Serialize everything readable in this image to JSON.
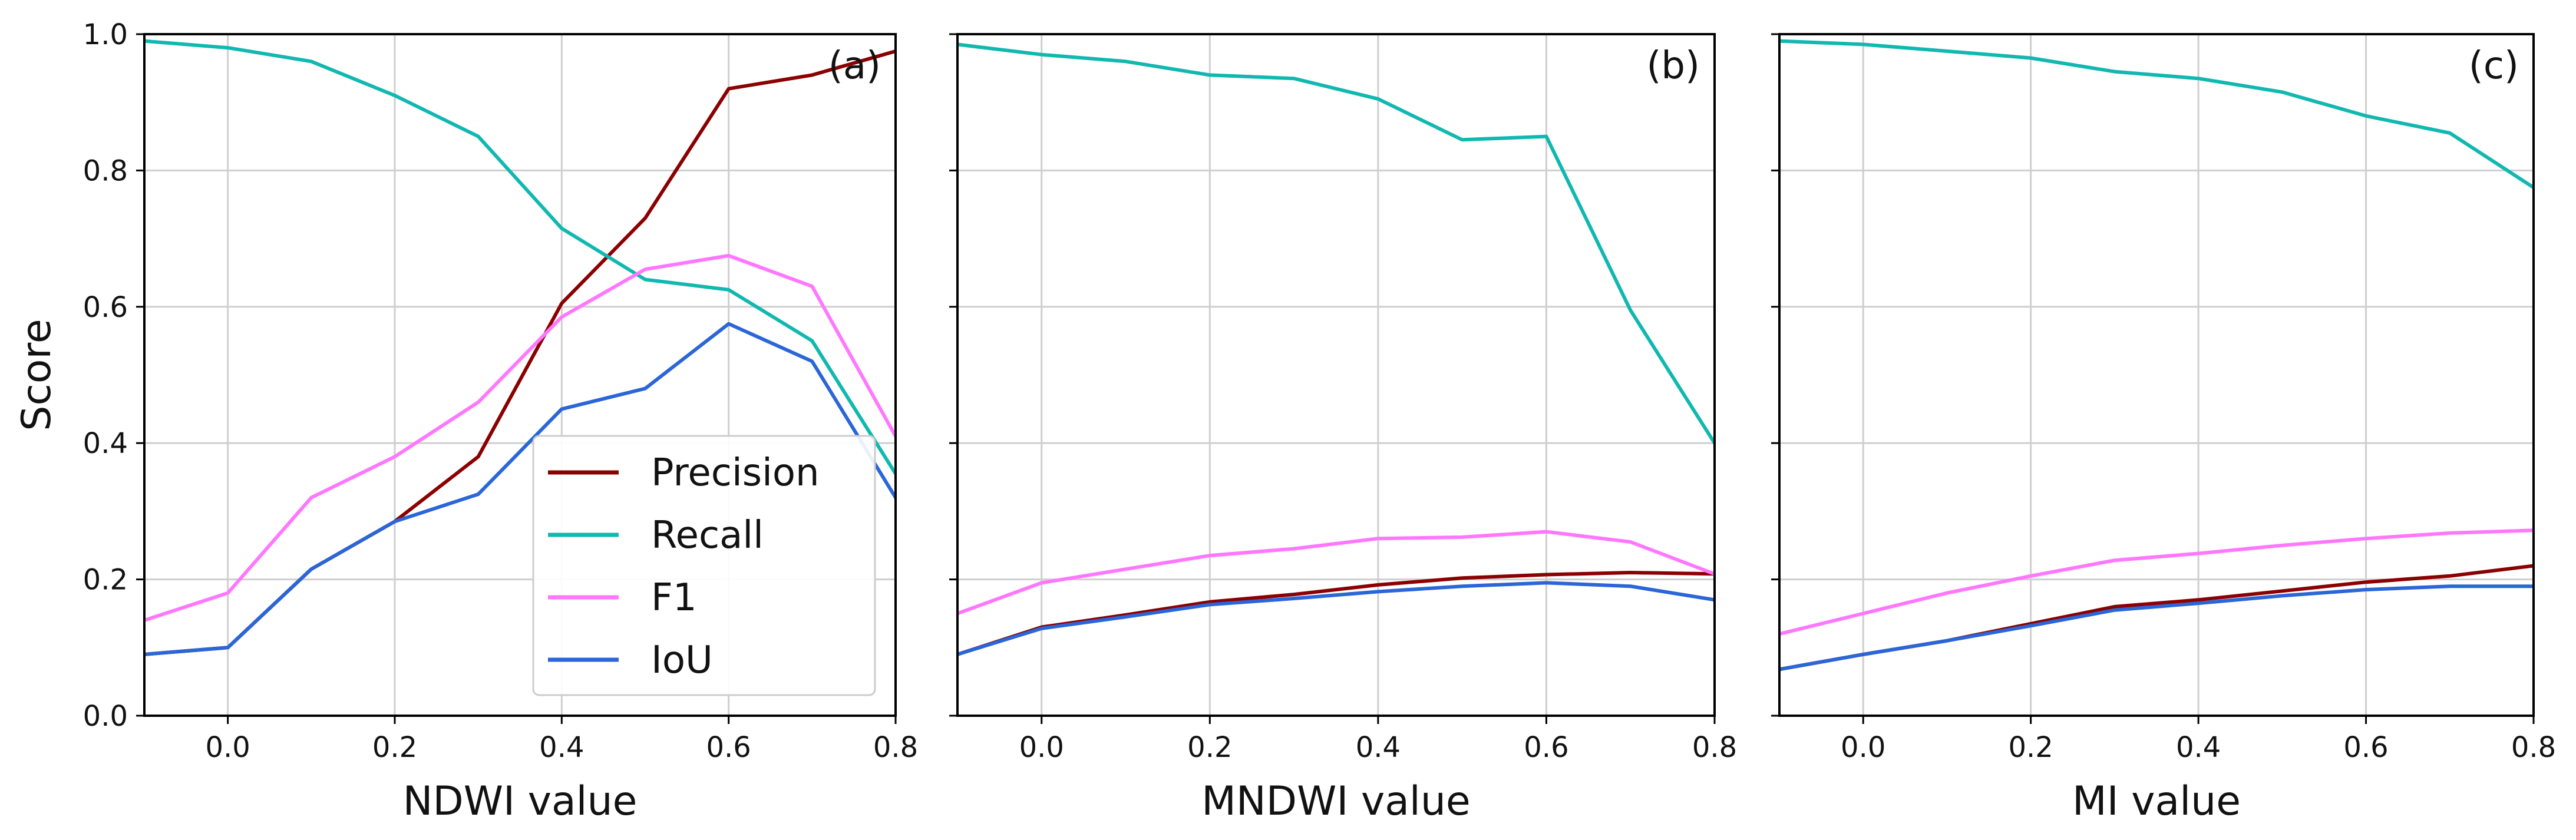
{
  "chart_data": [
    {
      "type": "line",
      "panel_label": "(a)",
      "xlabel": "NDWI value",
      "ylabel": "Score",
      "xlim": [
        -0.1,
        0.8
      ],
      "ylim": [
        0.0,
        1.0
      ],
      "xticks": [
        "0.0",
        "0.2",
        "0.4",
        "0.6",
        "0.8"
      ],
      "yticks": [
        "0.0",
        "0.2",
        "0.4",
        "0.6",
        "0.8",
        "1.0"
      ],
      "grid": true,
      "x": [
        -0.1,
        0.0,
        0.1,
        0.2,
        0.3,
        0.4,
        0.5,
        0.6,
        0.7,
        0.8
      ],
      "series": [
        {
          "name": "Precision",
          "color": "#8b0000",
          "values": [
            0.09,
            0.1,
            0.215,
            0.285,
            0.38,
            0.605,
            0.73,
            0.92,
            0.94,
            0.975
          ]
        },
        {
          "name": "Recall",
          "color": "#10b8b0",
          "values": [
            0.99,
            0.98,
            0.96,
            0.91,
            0.85,
            0.715,
            0.64,
            0.625,
            0.55,
            0.355
          ]
        },
        {
          "name": "F1",
          "color": "#ff77ff",
          "values": [
            0.14,
            0.18,
            0.32,
            0.38,
            0.46,
            0.585,
            0.655,
            0.675,
            0.63,
            0.41
          ]
        },
        {
          "name": "IoU",
          "color": "#2a66d8",
          "values": [
            0.09,
            0.1,
            0.215,
            0.285,
            0.325,
            0.45,
            0.48,
            0.575,
            0.52,
            0.32
          ]
        }
      ],
      "legend": {
        "position": "lower-right",
        "entries": [
          "Precision",
          "Recall",
          "F1",
          "IoU"
        ]
      }
    },
    {
      "type": "line",
      "panel_label": "(b)",
      "xlabel": "MNDWI value",
      "xlim": [
        -0.1,
        0.8
      ],
      "ylim": [
        0.0,
        1.0
      ],
      "xticks": [
        "0.0",
        "0.2",
        "0.4",
        "0.6",
        "0.8"
      ],
      "grid": true,
      "x": [
        -0.1,
        0.0,
        0.1,
        0.2,
        0.3,
        0.4,
        0.5,
        0.6,
        0.7,
        0.8
      ],
      "series": [
        {
          "name": "Precision",
          "color": "#8b0000",
          "values": [
            0.09,
            0.13,
            0.148,
            0.167,
            0.178,
            0.192,
            0.202,
            0.207,
            0.21,
            0.208
          ]
        },
        {
          "name": "Recall",
          "color": "#10b8b0",
          "values": [
            0.985,
            0.97,
            0.96,
            0.94,
            0.935,
            0.905,
            0.845,
            0.85,
            0.595,
            0.4
          ]
        },
        {
          "name": "F1",
          "color": "#ff77ff",
          "values": [
            0.15,
            0.195,
            0.215,
            0.235,
            0.245,
            0.26,
            0.262,
            0.27,
            0.255,
            0.208
          ]
        },
        {
          "name": "IoU",
          "color": "#2a66d8",
          "values": [
            0.09,
            0.128,
            0.145,
            0.163,
            0.172,
            0.182,
            0.19,
            0.195,
            0.19,
            0.17
          ]
        }
      ]
    },
    {
      "type": "line",
      "panel_label": "(c)",
      "xlabel": "MI value",
      "xlim": [
        -0.1,
        0.8
      ],
      "ylim": [
        0.0,
        1.0
      ],
      "xticks": [
        "0.0",
        "0.2",
        "0.4",
        "0.6",
        "0.8"
      ],
      "grid": true,
      "x": [
        -0.1,
        0.0,
        0.1,
        0.2,
        0.3,
        0.4,
        0.5,
        0.6,
        0.7,
        0.8
      ],
      "series": [
        {
          "name": "Precision",
          "color": "#8b0000",
          "values": [
            0.068,
            0.09,
            0.11,
            0.135,
            0.16,
            0.17,
            0.183,
            0.196,
            0.205,
            0.22
          ]
        },
        {
          "name": "Recall",
          "color": "#10b8b0",
          "values": [
            0.99,
            0.985,
            0.975,
            0.965,
            0.945,
            0.935,
            0.915,
            0.88,
            0.855,
            0.775
          ]
        },
        {
          "name": "F1",
          "color": "#ff77ff",
          "values": [
            0.12,
            0.15,
            0.18,
            0.205,
            0.228,
            0.238,
            0.25,
            0.26,
            0.268,
            0.272
          ]
        },
        {
          "name": "IoU",
          "color": "#2a66d8",
          "values": [
            0.068,
            0.09,
            0.11,
            0.132,
            0.155,
            0.165,
            0.176,
            0.185,
            0.19,
            0.19
          ]
        }
      ]
    }
  ]
}
